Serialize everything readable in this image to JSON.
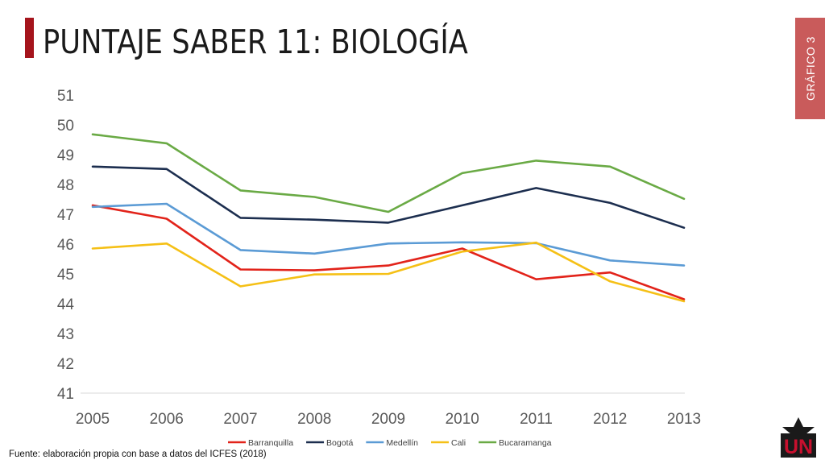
{
  "slide": {
    "title": "PUNTAJE SABER 11: BIOLOGÍA",
    "side_label": "GRÁFICO 3",
    "source": "Fuente: elaboración propia con base a datos del ICFES (2018)",
    "logo_text": "UN"
  },
  "colors": {
    "accent": "#a5141c",
    "side_tab": "#c95b5b"
  },
  "chart_data": {
    "type": "line",
    "x": [
      "2005",
      "2006",
      "2007",
      "2008",
      "2009",
      "2010",
      "2011",
      "2012",
      "2013"
    ],
    "ylim": [
      41,
      51
    ],
    "yticks": [
      41,
      42,
      43,
      44,
      45,
      46,
      47,
      48,
      49,
      50,
      51
    ],
    "grid": false,
    "legend_position": "bottom",
    "series": [
      {
        "name": "Barranquilla",
        "color": "#e2231a",
        "values": [
          47.3,
          46.85,
          45.15,
          45.12,
          45.28,
          45.85,
          44.82,
          45.05,
          44.15
        ]
      },
      {
        "name": "Bogotá",
        "color": "#1c2e4f",
        "values": [
          48.6,
          48.52,
          46.88,
          46.82,
          46.72,
          47.3,
          47.88,
          47.38,
          46.55
        ]
      },
      {
        "name": "Medellín",
        "color": "#5b9bd5",
        "values": [
          47.25,
          47.35,
          45.8,
          45.68,
          46.02,
          46.06,
          46.03,
          45.45,
          45.28
        ]
      },
      {
        "name": "Cali",
        "color": "#f5c016",
        "values": [
          45.85,
          46.02,
          44.58,
          44.98,
          45.0,
          45.75,
          46.05,
          44.75,
          44.08
        ]
      },
      {
        "name": "Bucaramanga",
        "color": "#6aaa45",
        "values": [
          49.68,
          49.38,
          47.8,
          47.58,
          47.08,
          48.38,
          48.8,
          48.6,
          47.52
        ]
      }
    ]
  }
}
